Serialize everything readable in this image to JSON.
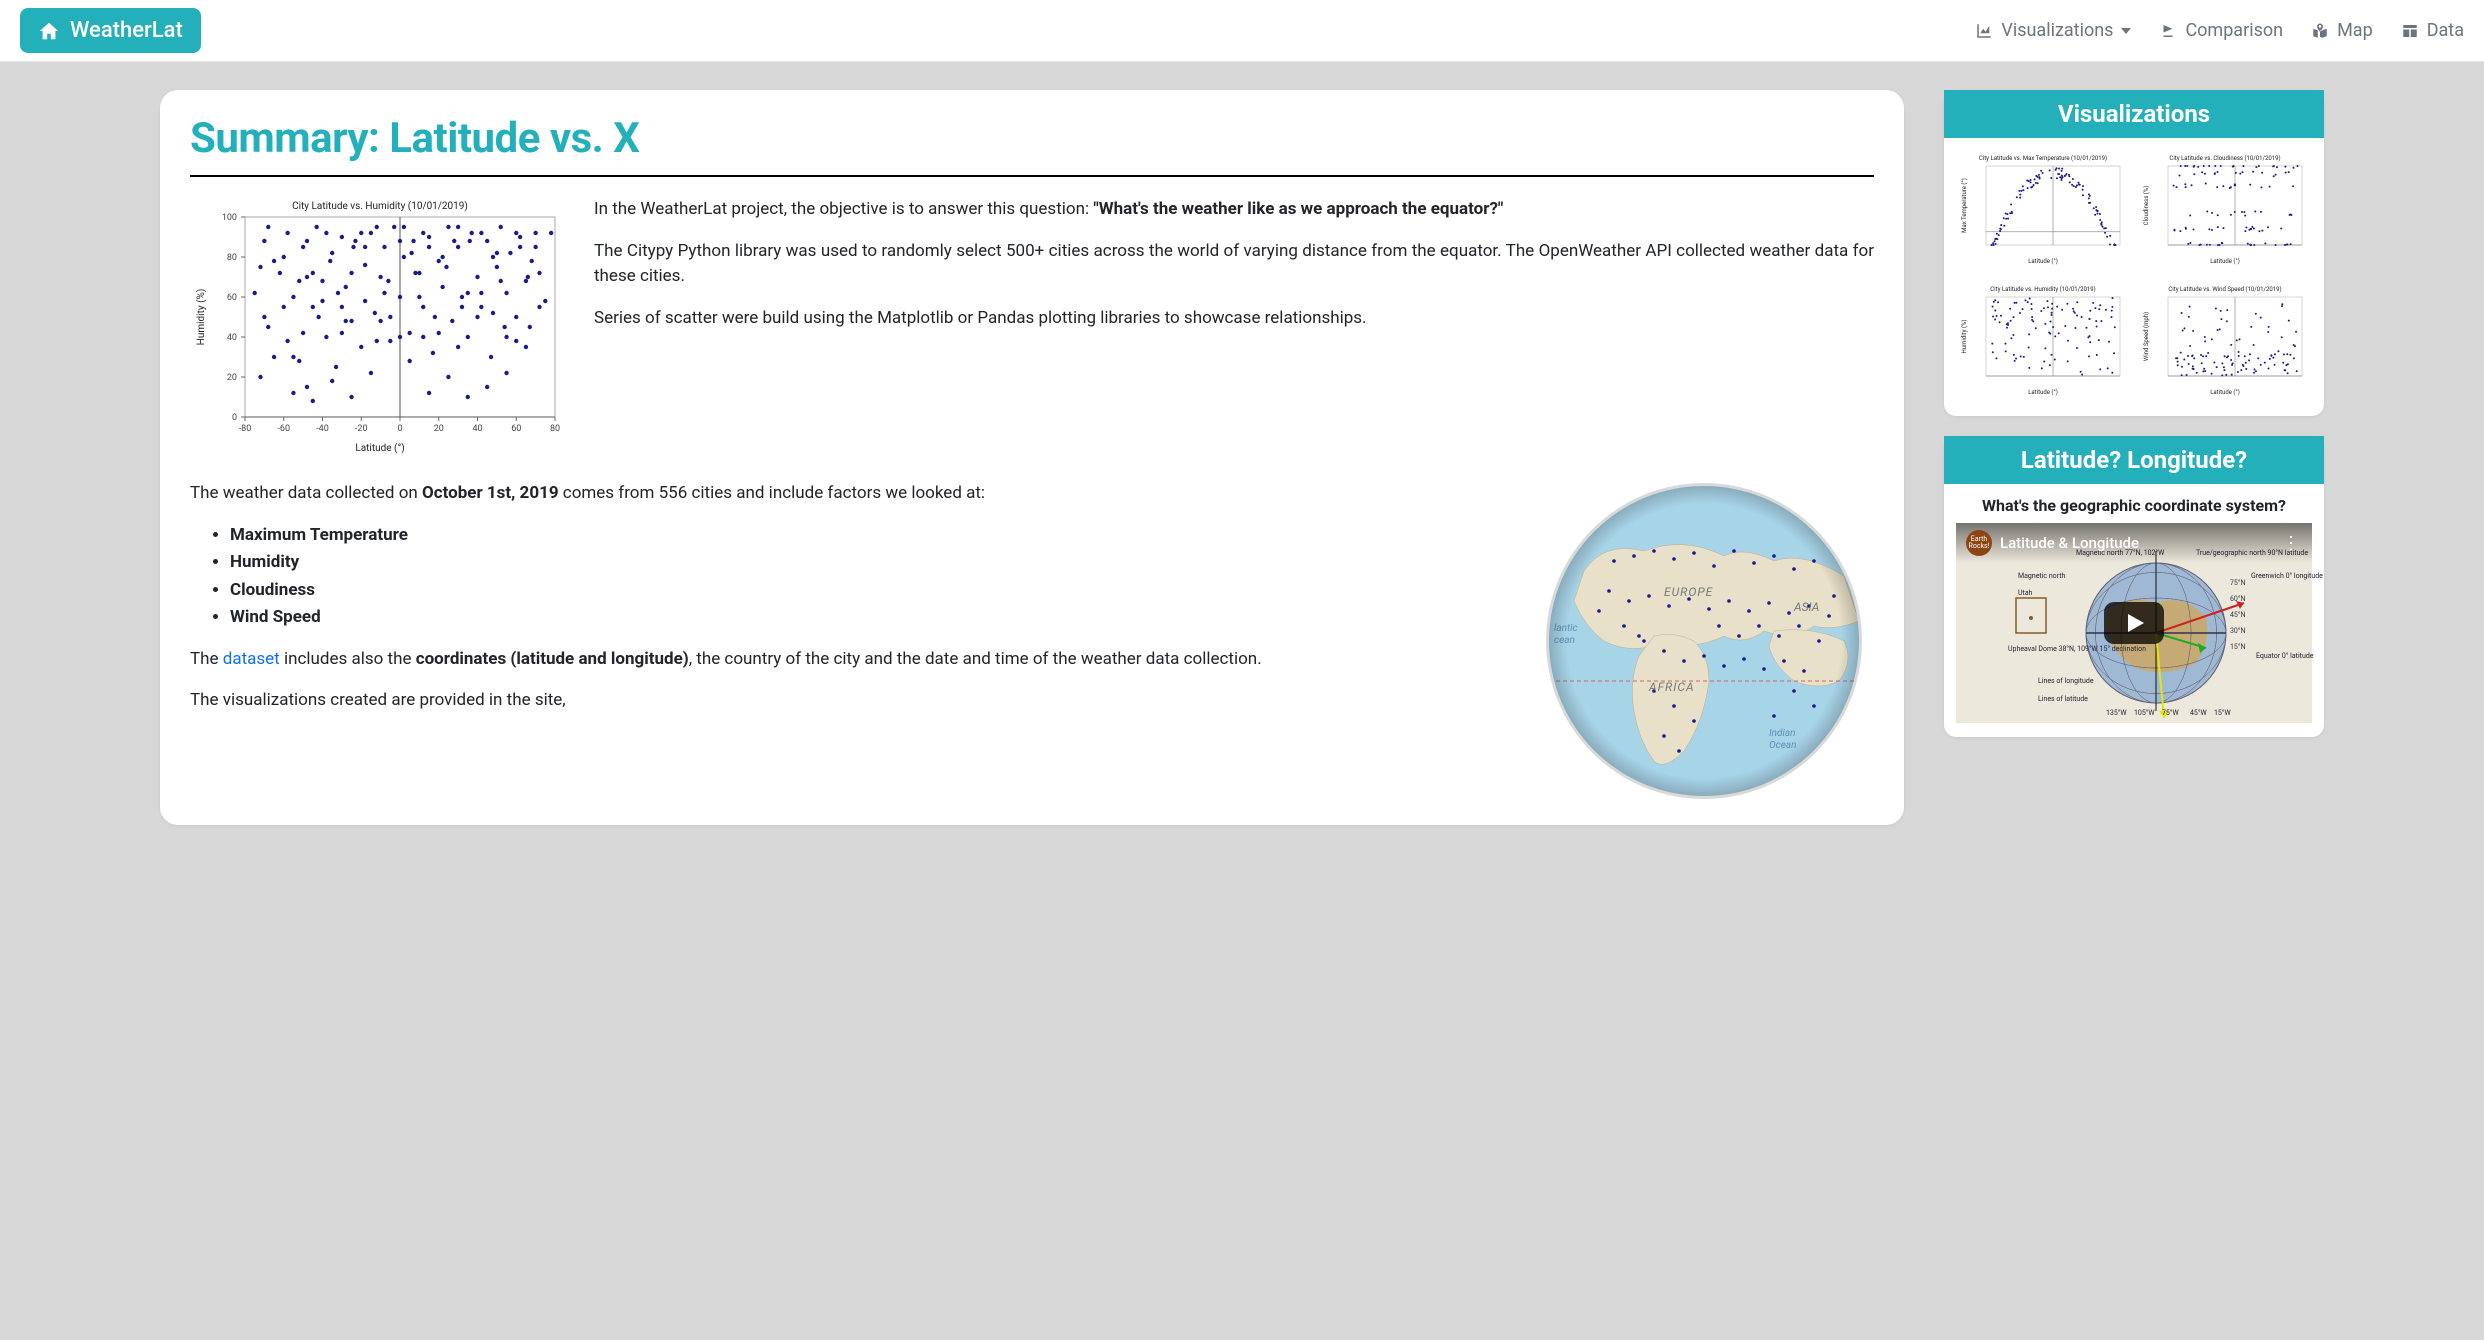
{
  "brand": "WeatherLat",
  "nav": {
    "visualizations": "Visualizations",
    "comparison": "Comparison",
    "map": "Map",
    "data": "Data"
  },
  "main": {
    "title": "Summary: Latitude vs. X",
    "intro_p1_a": "In the WeatherLat project, the objective is to answer this question: ",
    "intro_p1_b": "\"What's the weather like as we approach the equator?\"",
    "intro_p2": "The Citypy Python library was used to randomly select 500+ cities across the world of varying distance from the equator. The OpenWeather API collected weather data for these cities.",
    "intro_p3": "Series of scatter were build using the Matplotlib or Pandas plotting libraries to showcase relationships.",
    "mid_p1_a": "The weather data collected on ",
    "mid_p1_b": "October 1st, 2019",
    "mid_p1_c": " comes from 556 cities and include factors we looked at:",
    "factors": [
      "Maximum Temperature",
      "Humidity",
      "Cloudiness",
      "Wind Speed"
    ],
    "mid_p2_a": "The ",
    "mid_p2_link": "dataset",
    "mid_p2_b": " includes also the ",
    "mid_p2_c": "coordinates (latitude and longitude)",
    "mid_p2_d": ", the country of the city and the date and time of the weather data collection.",
    "mid_p3": "The visualizations created are provided in the site,"
  },
  "main_scatter": {
    "title": "City Latitude vs. Humidity (10/01/2019)",
    "xlabel": "Latitude (°)",
    "ylabel": "Humidity (%)",
    "xlim": [
      -80,
      80
    ],
    "ylim": [
      0,
      100
    ],
    "xticks": [
      -80,
      -60,
      -40,
      -20,
      0,
      20,
      40,
      60,
      80
    ],
    "yticks": [
      0,
      20,
      40,
      60,
      80,
      100
    ],
    "point_color": "#1a1a8f",
    "points": [
      [
        -75,
        62
      ],
      [
        -70,
        88
      ],
      [
        -68,
        45
      ],
      [
        -65,
        78
      ],
      [
        -60,
        55
      ],
      [
        -58,
        92
      ],
      [
        -55,
        30
      ],
      [
        -52,
        68
      ],
      [
        -50,
        85
      ],
      [
        -48,
        15
      ],
      [
        -45,
        72
      ],
      [
        -43,
        95
      ],
      [
        -40,
        58
      ],
      [
        -38,
        40
      ],
      [
        -35,
        82
      ],
      [
        -33,
        25
      ],
      [
        -30,
        90
      ],
      [
        -28,
        65
      ],
      [
        -25,
        48
      ],
      [
        -23,
        88
      ],
      [
        -20,
        35
      ],
      [
        -18,
        76
      ],
      [
        -15,
        92
      ],
      [
        -13,
        52
      ],
      [
        -10,
        70
      ],
      [
        -8,
        85
      ],
      [
        -5,
        38
      ],
      [
        -3,
        95
      ],
      [
        0,
        60
      ],
      [
        2,
        80
      ],
      [
        5,
        42
      ],
      [
        7,
        88
      ],
      [
        10,
        72
      ],
      [
        12,
        55
      ],
      [
        15,
        90
      ],
      [
        17,
        32
      ],
      [
        20,
        78
      ],
      [
        22,
        65
      ],
      [
        25,
        95
      ],
      [
        27,
        48
      ],
      [
        30,
        85
      ],
      [
        32,
        60
      ],
      [
        35,
        40
      ],
      [
        37,
        92
      ],
      [
        40,
        70
      ],
      [
        42,
        55
      ],
      [
        45,
        88
      ],
      [
        47,
        30
      ],
      [
        50,
        75
      ],
      [
        52,
        95
      ],
      [
        55,
        62
      ],
      [
        57,
        82
      ],
      [
        60,
        50
      ],
      [
        62,
        90
      ],
      [
        65,
        68
      ],
      [
        67,
        45
      ],
      [
        70,
        85
      ],
      [
        72,
        72
      ],
      [
        75,
        58
      ],
      [
        78,
        92
      ],
      [
        -72,
        20
      ],
      [
        -62,
        72
      ],
      [
        -55,
        60
      ],
      [
        -48,
        88
      ],
      [
        -42,
        50
      ],
      [
        -36,
        78
      ],
      [
        -30,
        42
      ],
      [
        -24,
        85
      ],
      [
        -18,
        58
      ],
      [
        -12,
        95
      ],
      [
        -6,
        68
      ],
      [
        0,
        40
      ],
      [
        6,
        82
      ],
      [
        12,
        92
      ],
      [
        18,
        50
      ],
      [
        24,
        75
      ],
      [
        30,
        35
      ],
      [
        36,
        88
      ],
      [
        42,
        62
      ],
      [
        48,
        80
      ],
      [
        54,
        45
      ],
      [
        60,
        92
      ],
      [
        66,
        70
      ],
      [
        72,
        55
      ],
      [
        -68,
        95
      ],
      [
        -58,
        38
      ],
      [
        -48,
        70
      ],
      [
        -38,
        92
      ],
      [
        -28,
        48
      ],
      [
        -18,
        85
      ],
      [
        -8,
        62
      ],
      [
        2,
        95
      ],
      [
        12,
        40
      ],
      [
        22,
        80
      ],
      [
        32,
        55
      ],
      [
        42,
        92
      ],
      [
        52,
        68
      ],
      [
        62,
        85
      ],
      [
        -55,
        12
      ],
      [
        -35,
        18
      ],
      [
        -15,
        22
      ],
      [
        5,
        28
      ],
      [
        25,
        20
      ],
      [
        45,
        15
      ],
      [
        -45,
        8
      ],
      [
        15,
        12
      ],
      [
        35,
        10
      ],
      [
        55,
        22
      ],
      [
        -25,
        10
      ],
      [
        65,
        35
      ],
      [
        -70,
        50
      ],
      [
        -60,
        80
      ],
      [
        -50,
        42
      ],
      [
        -40,
        68
      ],
      [
        -30,
        55
      ],
      [
        -20,
        92
      ],
      [
        -10,
        48
      ],
      [
        0,
        88
      ],
      [
        10,
        60
      ],
      [
        20,
        42
      ],
      [
        30,
        95
      ],
      [
        40,
        50
      ],
      [
        50,
        82
      ],
      [
        60,
        38
      ],
      [
        70,
        92
      ],
      [
        -65,
        30
      ],
      [
        -45,
        55
      ],
      [
        -25,
        72
      ],
      [
        -5,
        50
      ],
      [
        15,
        85
      ],
      [
        35,
        62
      ],
      [
        55,
        40
      ],
      [
        -72,
        75
      ],
      [
        -52,
        28
      ],
      [
        -32,
        62
      ],
      [
        -12,
        38
      ],
      [
        8,
        72
      ],
      [
        28,
        88
      ],
      [
        48,
        52
      ],
      [
        68,
        78
      ]
    ]
  },
  "globe": {
    "ocean_color": "#a8d4e8",
    "land_color": "#e8e0c8",
    "point_color": "#1a1a8f",
    "labels": {
      "europe": "EUROPE",
      "africa": "AFRICA",
      "asia": "ASIA",
      "atlantic1": "lantic",
      "atlantic2": "cean",
      "indian1": "Indian",
      "indian2": "Ocean"
    }
  },
  "sidebar": {
    "viz_header": "Visualizations",
    "coord_header": "Latitude? Longitude?",
    "coord_sub": "What's the geographic coordinate system?",
    "video_title": "Latitude & Longitude",
    "video_logo": "Earth Rocks!"
  },
  "thumbs": [
    {
      "title": "City Latitude vs. Max Temperature (10/01/2019)",
      "xlabel": "Latitude (°)",
      "ylabel": "Max Temperature (°)",
      "xlim": [
        -80,
        80
      ],
      "ylim": [
        -20,
        100
      ],
      "shape": "arch"
    },
    {
      "title": "City Latitude vs. Cloudiness (10/01/2019)",
      "xlabel": "Latitude (°)",
      "ylabel": "Cloudiness (%)",
      "xlim": [
        -80,
        80
      ],
      "ylim": [
        0,
        100
      ],
      "shape": "banded"
    },
    {
      "title": "City Latitude vs. Humidity (10/01/2019)",
      "xlabel": "Latitude (°)",
      "ylabel": "Humidity (%)",
      "xlim": [
        -80,
        80
      ],
      "ylim": [
        0,
        100
      ],
      "shape": "topheavy"
    },
    {
      "title": "City Latitude vs. Wind Speed (10/01/2019)",
      "xlabel": "Latitude (°)",
      "ylabel": "Wind Speed (mph)",
      "xlim": [
        -80,
        80
      ],
      "ylim": [
        0,
        40
      ],
      "shape": "bottomheavy"
    }
  ],
  "video_globe": {
    "labels": {
      "mag_north": "Magnetic north 77°N, 102°W",
      "true_north": "True/geographic north 90°N latitude",
      "mag_north2": "Magnetic north",
      "greenwich": "Greenwich 0° longitude",
      "utah": "Utah",
      "upheaval": "Upheaval Dome 38°N, 109°W 15° declination",
      "lines_lon": "Lines of longitude",
      "lines_lat": "Lines of latitude",
      "equator": "Equator 0° latitude"
    }
  }
}
